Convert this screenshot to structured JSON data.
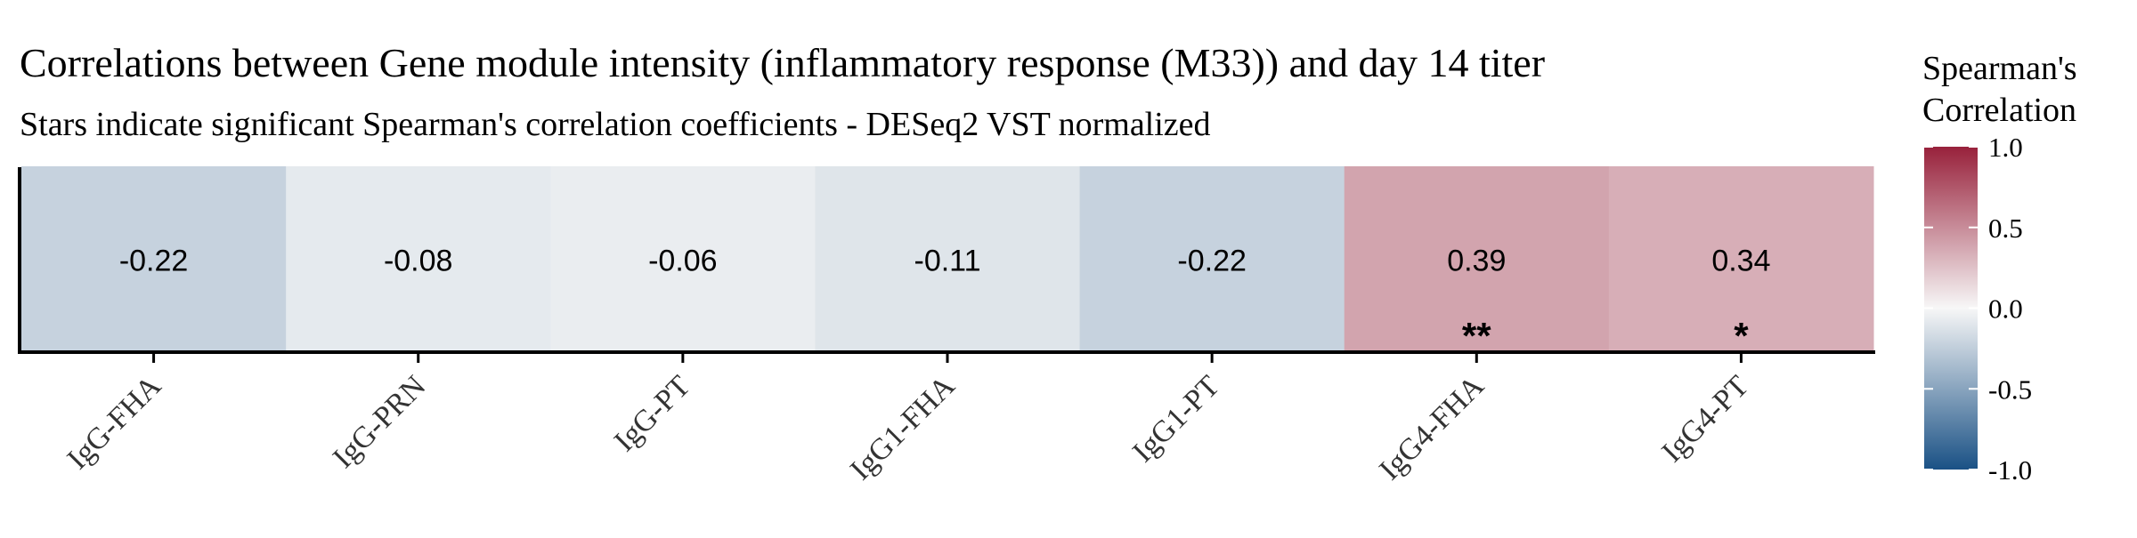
{
  "chart_data": {
    "type": "heatmap",
    "title": "Correlations between Gene module intensity (inflammatory response (M33)) and day 14 titer",
    "subtitle": "Stars indicate significant Spearman's correlation coefficients - DESeq2 VST normalized",
    "categories": [
      "IgG-FHA",
      "IgG-PRN",
      "IgG-PT",
      "IgG1-FHA",
      "IgG1-PT",
      "IgG4-FHA",
      "IgG4-PT"
    ],
    "values": [
      -0.22,
      -0.08,
      -0.06,
      -0.11,
      -0.22,
      0.39,
      0.34
    ],
    "value_labels": [
      "-0.22",
      "-0.08",
      "-0.06",
      "-0.11",
      "-0.22",
      "0.39",
      "0.34"
    ],
    "significance": [
      "",
      "",
      "",
      "",
      "",
      "**",
      "*"
    ],
    "xlabel": "",
    "ylabel": "",
    "legend": {
      "title_lines": [
        "Spearman's",
        "Correlation"
      ],
      "range": [
        -1.0,
        1.0
      ],
      "ticks": [
        1.0,
        0.5,
        0.0,
        -0.5,
        -1.0
      ],
      "tick_labels": [
        "1.0",
        "0.5",
        "0.0",
        "-0.5",
        "-1.0"
      ],
      "placement": "right"
    },
    "colors": {
      "low": "#1a5185",
      "mid": "#f7f7f7",
      "high": "#98213b"
    },
    "grid": false
  }
}
